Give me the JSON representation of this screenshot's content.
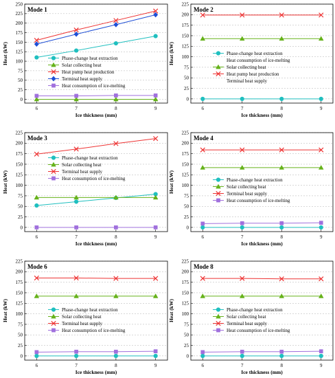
{
  "figure": {
    "xlabel": "Ice thickness (mm)",
    "ylabel": "Heat (kW)"
  },
  "colors": {
    "Phase-change heat extraction": "#1fbfbf",
    "Solar collecting heat": "#66b21a",
    "Heat pump heat production": "#ee3333",
    "Terminal heat supply": "#1f4fd6",
    "Heat consumption of ice-melting": "#a070dd",
    "terminal_red": "#ee3333"
  },
  "chart_data": [
    {
      "type": "line",
      "mode": "Mode 1",
      "x": [
        6,
        7,
        8,
        9
      ],
      "xlabel": "Ice thickness (mm)",
      "ylabel": "Heat (kW)",
      "ylim": [
        -10,
        250
      ],
      "yticks": [
        0,
        25,
        50,
        75,
        100,
        125,
        150,
        175,
        200,
        225,
        250
      ],
      "legend_position": "center-right",
      "series": [
        {
          "name": "Phase-change heat extraction",
          "values": [
            110,
            128,
            147,
            166
          ],
          "marker": "circle",
          "color": "#1fbfbf"
        },
        {
          "name": "Solar collecting heat",
          "values": [
            0,
            0,
            0,
            0
          ],
          "marker": "triangle",
          "color": "#66b21a"
        },
        {
          "name": "Heat pump heat production",
          "values": [
            155,
            182,
            207,
            232
          ],
          "marker": "cross",
          "color": "#ee3333"
        },
        {
          "name": "Terminal heat supply",
          "values": [
            145,
            171,
            196,
            222
          ],
          "marker": "diamond",
          "color": "#1f4fd6"
        },
        {
          "name": "Heat consumption of ice-melting",
          "values": [
            9,
            9,
            10,
            10
          ],
          "marker": "square",
          "color": "#a070dd"
        }
      ]
    },
    {
      "type": "line",
      "mode": "Mode 2",
      "x": [
        6,
        7,
        8,
        9
      ],
      "xlabel": "Ice thickness (mm)",
      "ylabel": "Heat (kW)",
      "ylim": [
        -10,
        225
      ],
      "yticks": [
        0,
        25,
        50,
        75,
        100,
        125,
        150,
        175,
        200,
        225
      ],
      "legend_position": "center-right",
      "series": [
        {
          "name": "Phase-change heat extraction",
          "values": [
            0,
            0,
            0,
            0
          ],
          "marker": "circle",
          "color": "#1fbfbf"
        },
        {
          "name": "Heat consumption of ice-melting",
          "values": null,
          "marker": "none",
          "color": "#000000"
        },
        {
          "name": "Solar collecting heat",
          "values": [
            143,
            143,
            143,
            143
          ],
          "marker": "triangle",
          "color": "#66b21a"
        },
        {
          "name": "Heat pump heat production",
          "values": [
            199,
            199,
            199,
            199
          ],
          "marker": "cross",
          "color": "#ee3333"
        },
        {
          "name": "Terminal heat supply",
          "values": null,
          "marker": "none",
          "color": "#000000"
        }
      ]
    },
    {
      "type": "line",
      "mode": "Mode 3",
      "x": [
        6,
        7,
        8,
        9
      ],
      "xlabel": "Ice thickness (mm)",
      "ylabel": "Heat (kW)",
      "ylim": [
        -10,
        225
      ],
      "yticks": [
        0,
        25,
        50,
        75,
        100,
        125,
        150,
        175,
        200,
        225
      ],
      "legend_position": "center-right",
      "series": [
        {
          "name": "Phase-change heat extraction",
          "values": [
            52,
            61,
            70,
            79
          ],
          "marker": "circle",
          "color": "#1fbfbf"
        },
        {
          "name": "Solar collecting heat",
          "values": [
            71,
            71,
            71,
            71
          ],
          "marker": "triangle",
          "color": "#66b21a"
        },
        {
          "name": "Terminal heat supply",
          "values": [
            174,
            186,
            199,
            211
          ],
          "marker": "cross",
          "color": "#ee3333"
        },
        {
          "name": "Heat consumption of ice-melting",
          "values": [
            0,
            0,
            0,
            0
          ],
          "marker": "square",
          "color": "#a070dd"
        }
      ]
    },
    {
      "type": "line",
      "mode": "Mode 4",
      "x": [
        6,
        7,
        8,
        9
      ],
      "xlabel": "Ice thickness (mm)",
      "ylabel": "Heat (kW)",
      "ylim": [
        -10,
        225
      ],
      "yticks": [
        0,
        25,
        50,
        75,
        100,
        125,
        150,
        175,
        200,
        225
      ],
      "legend_position": "center-right",
      "series": [
        {
          "name": "Phase-change heat extraction",
          "values": [
            0,
            0,
            0,
            0
          ],
          "marker": "circle",
          "color": "#1fbfbf"
        },
        {
          "name": "Solar collecting heat",
          "values": [
            142,
            142,
            142,
            142
          ],
          "marker": "triangle",
          "color": "#66b21a"
        },
        {
          "name": "Terminal heat supply",
          "values": [
            184,
            184,
            184,
            184
          ],
          "marker": "cross",
          "color": "#ee3333"
        },
        {
          "name": "Heat consumption of ice-melting",
          "values": [
            9,
            10,
            10,
            11
          ],
          "marker": "square",
          "color": "#a070dd"
        }
      ]
    },
    {
      "type": "line",
      "mode": "Mode 6",
      "x": [
        6,
        7,
        8,
        9
      ],
      "xlabel": "Ice thickness (mm)",
      "ylabel": "Heat (kW)",
      "ylim": [
        -10,
        225
      ],
      "yticks": [
        0,
        25,
        50,
        75,
        100,
        125,
        150,
        175,
        200,
        225
      ],
      "legend_position": "center-right",
      "series": [
        {
          "name": "Phase-change heat extraction",
          "values": [
            0,
            0,
            0,
            0
          ],
          "marker": "circle",
          "color": "#1fbfbf"
        },
        {
          "name": "Solar collecting heat",
          "values": [
            142,
            142,
            142,
            142
          ],
          "marker": "triangle",
          "color": "#66b21a"
        },
        {
          "name": "Terminal heat supply",
          "values": [
            185,
            185,
            184,
            184
          ],
          "marker": "cross",
          "color": "#ee3333"
        },
        {
          "name": "Heat consumption of ice-melting",
          "values": [
            9,
            10,
            10,
            11
          ],
          "marker": "square",
          "color": "#a070dd"
        }
      ]
    },
    {
      "type": "line",
      "mode": "Mode 8",
      "x": [
        6,
        7,
        8,
        9
      ],
      "xlabel": "Ice thickness (mm)",
      "ylabel": "Heat (kW)",
      "ylim": [
        -10,
        225
      ],
      "yticks": [
        0,
        25,
        50,
        75,
        100,
        125,
        150,
        175,
        200,
        225
      ],
      "legend_position": "center-right",
      "series": [
        {
          "name": "Phase-change heat extraction",
          "values": [
            0,
            0,
            0,
            0
          ],
          "marker": "circle",
          "color": "#1fbfbf"
        },
        {
          "name": "Solar collecting heat",
          "values": [
            142,
            142,
            142,
            142
          ],
          "marker": "triangle",
          "color": "#66b21a"
        },
        {
          "name": "Terminal heat supply",
          "values": [
            184,
            184,
            183,
            183
          ],
          "marker": "cross",
          "color": "#ee3333"
        },
        {
          "name": "Heat consumption of ice-melting",
          "values": [
            9,
            10,
            10,
            11
          ],
          "marker": "square",
          "color": "#a070dd"
        }
      ]
    }
  ]
}
